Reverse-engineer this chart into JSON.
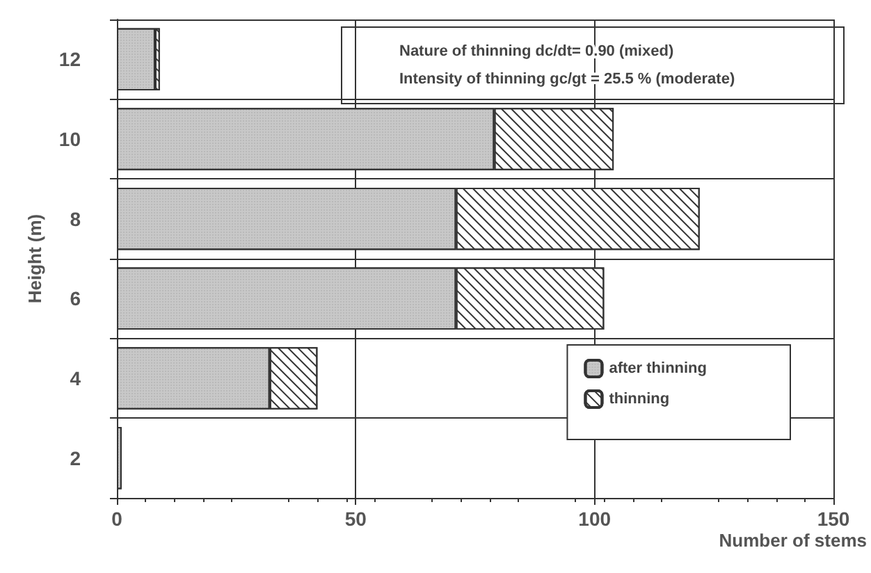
{
  "chart_data": {
    "type": "bar",
    "orientation": "horizontal",
    "stacked": true,
    "categories": [
      "12",
      "10",
      "8",
      "6",
      "4",
      "2"
    ],
    "series": [
      {
        "name": "after thinning",
        "color": "#c8c8c8",
        "values": [
          8,
          79,
          71,
          71,
          32,
          1
        ]
      },
      {
        "name": "thinning",
        "color": "#ffffff",
        "values": [
          1,
          25,
          51,
          31,
          10,
          0
        ]
      }
    ],
    "xlim": [
      0,
      150
    ],
    "xticks": [
      0,
      50,
      100,
      150
    ],
    "xlabel": "Number of stems",
    "ylabel": "Height (m)",
    "annotations": [
      "Nature of thinning dc/dt= 0.90 (mixed)",
      "Intensity of thinning gc/gt = 25.5 % (moderate)"
    ],
    "grid": true,
    "legend": "bottom right"
  }
}
